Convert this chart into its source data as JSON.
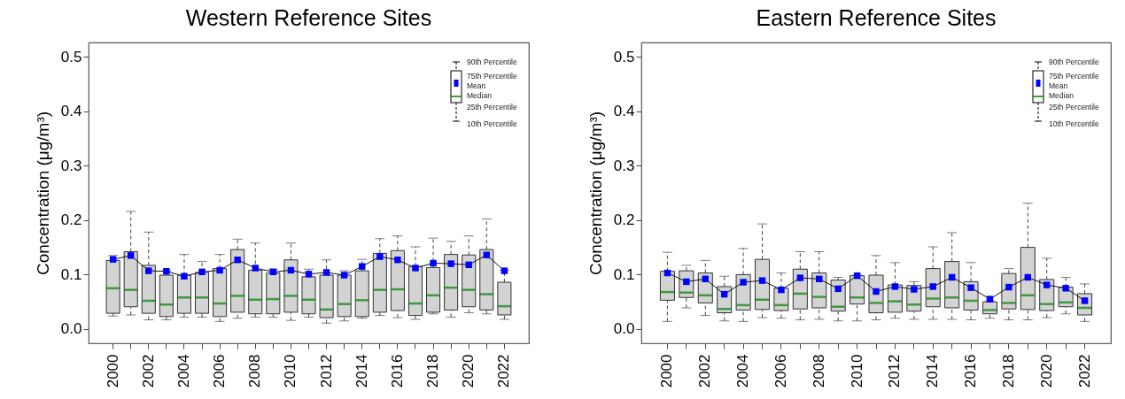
{
  "chart_data": [
    {
      "type": "box",
      "title": "Western Reference Sites",
      "ylabel": "Concentration (μg/m³)",
      "categories": [
        "2000",
        null,
        "2002",
        null,
        "2004",
        null,
        "2006",
        null,
        "2008",
        null,
        "2010",
        null,
        "2012",
        null,
        "2014",
        null,
        "2016",
        null,
        "2018",
        null,
        "2020",
        null,
        "2022"
      ],
      "ylim": [
        -0.026,
        0.526
      ],
      "yticks": [
        {
          "value": 0,
          "label": "0.0"
        },
        0.1,
        0.2,
        0.3,
        0.4,
        0.5
      ],
      "marker": "square",
      "annotations": [
        "90th Percentile",
        "75th Percentile",
        "Mean",
        "Median",
        "25th Percentile",
        "10th Percentile"
      ],
      "series": [
        {
          "type": "line",
          "color": "#0000ff",
          "values": [
            0.128,
            0.135,
            0.107,
            0.106,
            0.097,
            0.105,
            0.108,
            0.127,
            0.112,
            0.105,
            0.108,
            0.101,
            0.104,
            0.099,
            0.115,
            0.133,
            0.127,
            0.112,
            0.121,
            0.12,
            0.118,
            0.136,
            0.107
          ]
        }
      ],
      "boxes": [
        {
          "low": 0.024,
          "q1": 0.029,
          "median": 0.075,
          "q3": 0.126,
          "high": 0.135
        },
        {
          "low": 0.026,
          "q1": 0.041,
          "median": 0.072,
          "q3": 0.142,
          "high": 0.216
        },
        {
          "low": 0.017,
          "q1": 0.029,
          "median": 0.052,
          "q3": 0.117,
          "high": 0.178
        },
        {
          "low": 0.017,
          "q1": 0.023,
          "median": 0.045,
          "q3": 0.099,
          "high": 0.107
        },
        {
          "low": 0.022,
          "q1": 0.029,
          "median": 0.058,
          "q3": 0.099,
          "high": 0.137
        },
        {
          "low": 0.022,
          "q1": 0.029,
          "median": 0.058,
          "q3": 0.104,
          "high": 0.124
        },
        {
          "low": 0.014,
          "q1": 0.023,
          "median": 0.047,
          "q3": 0.111,
          "high": 0.137
        },
        {
          "low": 0.02,
          "q1": 0.031,
          "median": 0.061,
          "q3": 0.146,
          "high": 0.165
        },
        {
          "low": 0.022,
          "q1": 0.028,
          "median": 0.054,
          "q3": 0.108,
          "high": 0.158
        },
        {
          "low": 0.022,
          "q1": 0.028,
          "median": 0.055,
          "q3": 0.103,
          "high": 0.11
        },
        {
          "low": 0.016,
          "q1": 0.031,
          "median": 0.061,
          "q3": 0.127,
          "high": 0.158
        },
        {
          "low": 0.022,
          "q1": 0.028,
          "median": 0.054,
          "q3": 0.096,
          "high": 0.11
        },
        {
          "low": 0.011,
          "q1": 0.021,
          "median": 0.036,
          "q3": 0.099,
          "high": 0.127
        },
        {
          "low": 0.015,
          "q1": 0.023,
          "median": 0.046,
          "q3": 0.099,
          "high": 0.107
        },
        {
          "low": 0.02,
          "q1": 0.023,
          "median": 0.053,
          "q3": 0.107,
          "high": 0.128
        },
        {
          "low": 0.025,
          "q1": 0.031,
          "median": 0.072,
          "q3": 0.139,
          "high": 0.166
        },
        {
          "low": 0.021,
          "q1": 0.034,
          "median": 0.073,
          "q3": 0.144,
          "high": 0.171
        },
        {
          "low": 0.018,
          "q1": 0.025,
          "median": 0.047,
          "q3": 0.115,
          "high": 0.151
        },
        {
          "low": 0.028,
          "q1": 0.031,
          "median": 0.062,
          "q3": 0.113,
          "high": 0.167
        },
        {
          "low": 0.022,
          "q1": 0.035,
          "median": 0.076,
          "q3": 0.137,
          "high": 0.161
        },
        {
          "low": 0.03,
          "q1": 0.041,
          "median": 0.072,
          "q3": 0.136,
          "high": 0.171
        },
        {
          "low": 0.028,
          "q1": 0.035,
          "median": 0.064,
          "q3": 0.146,
          "high": 0.202
        },
        {
          "low": 0.018,
          "q1": 0.026,
          "median": 0.042,
          "q3": 0.086,
          "high": 0.108
        }
      ]
    },
    {
      "type": "box",
      "title": "Eastern Reference Sites",
      "ylabel": "Concentration (μg/m³)",
      "categories": [
        "2000",
        null,
        "2002",
        null,
        "2004",
        null,
        "2006",
        null,
        "2008",
        null,
        "2010",
        null,
        "2012",
        null,
        "2014",
        null,
        "2016",
        null,
        "2018",
        null,
        "2020",
        null,
        "2022"
      ],
      "ylim": [
        -0.026,
        0.526
      ],
      "yticks": [
        {
          "value": 0,
          "label": "0.0"
        },
        0.1,
        0.2,
        0.3,
        0.4,
        0.5
      ],
      "marker": "square",
      "annotations": [
        "90th Percentile",
        "75th Percentile",
        "Mean",
        "Median",
        "25th Percentile",
        "10th Percentile"
      ],
      "series": [
        {
          "type": "line",
          "color": "#0000ff",
          "values": [
            0.103,
            0.087,
            0.092,
            0.064,
            0.086,
            0.089,
            0.072,
            0.094,
            0.092,
            0.074,
            0.098,
            0.069,
            0.078,
            0.073,
            0.078,
            0.095,
            0.076,
            0.055,
            0.077,
            0.095,
            0.081,
            0.075,
            0.052
          ]
        }
      ],
      "boxes": [
        {
          "low": 0.014,
          "q1": 0.053,
          "median": 0.068,
          "q3": 0.106,
          "high": 0.141
        },
        {
          "low": 0.039,
          "q1": 0.058,
          "median": 0.067,
          "q3": 0.107,
          "high": 0.117
        },
        {
          "low": 0.025,
          "q1": 0.048,
          "median": 0.062,
          "q3": 0.103,
          "high": 0.126
        },
        {
          "low": 0.015,
          "q1": 0.03,
          "median": 0.037,
          "q3": 0.078,
          "high": 0.097
        },
        {
          "low": 0.014,
          "q1": 0.035,
          "median": 0.044,
          "q3": 0.1,
          "high": 0.148
        },
        {
          "low": 0.021,
          "q1": 0.036,
          "median": 0.054,
          "q3": 0.128,
          "high": 0.193
        },
        {
          "low": 0.02,
          "q1": 0.034,
          "median": 0.044,
          "q3": 0.075,
          "high": 0.103
        },
        {
          "low": 0.017,
          "q1": 0.037,
          "median": 0.065,
          "q3": 0.11,
          "high": 0.142
        },
        {
          "low": 0.018,
          "q1": 0.039,
          "median": 0.059,
          "q3": 0.103,
          "high": 0.142
        },
        {
          "low": 0.015,
          "q1": 0.033,
          "median": 0.041,
          "q3": 0.09,
          "high": 0.095
        },
        {
          "low": 0.015,
          "q1": 0.046,
          "median": 0.058,
          "q3": 0.098,
          "high": 0.099
        },
        {
          "low": 0.017,
          "q1": 0.03,
          "median": 0.048,
          "q3": 0.099,
          "high": 0.135
        },
        {
          "low": 0.02,
          "q1": 0.031,
          "median": 0.051,
          "q3": 0.081,
          "high": 0.122
        },
        {
          "low": 0.018,
          "q1": 0.033,
          "median": 0.045,
          "q3": 0.08,
          "high": 0.087
        },
        {
          "low": 0.018,
          "q1": 0.041,
          "median": 0.056,
          "q3": 0.111,
          "high": 0.151
        },
        {
          "low": 0.018,
          "q1": 0.039,
          "median": 0.058,
          "q3": 0.124,
          "high": 0.177
        },
        {
          "low": 0.017,
          "q1": 0.035,
          "median": 0.052,
          "q3": 0.087,
          "high": 0.122
        },
        {
          "low": 0.02,
          "q1": 0.028,
          "median": 0.035,
          "q3": 0.05,
          "high": 0.052
        },
        {
          "low": 0.017,
          "q1": 0.037,
          "median": 0.048,
          "q3": 0.102,
          "high": 0.111
        },
        {
          "low": 0.017,
          "q1": 0.036,
          "median": 0.062,
          "q3": 0.15,
          "high": 0.231
        },
        {
          "low": 0.021,
          "q1": 0.034,
          "median": 0.046,
          "q3": 0.091,
          "high": 0.13
        },
        {
          "low": 0.028,
          "q1": 0.041,
          "median": 0.049,
          "q3": 0.077,
          "high": 0.095
        },
        {
          "low": 0.014,
          "q1": 0.026,
          "median": 0.039,
          "q3": 0.065,
          "high": 0.083
        }
      ]
    }
  ]
}
